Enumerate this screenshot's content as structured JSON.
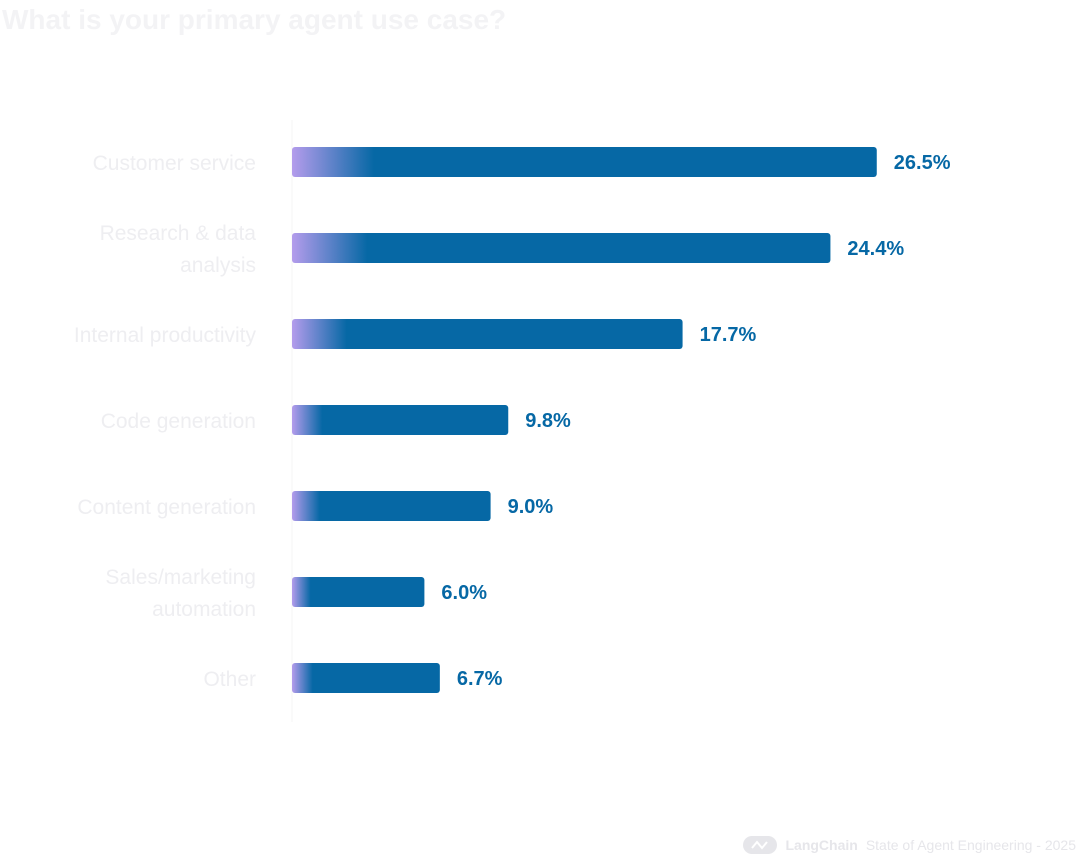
{
  "title": "What is your primary agent use case?",
  "footer": {
    "brand": "LangChain",
    "text": "State of Agent Engineering - 2025",
    "logo_icon": "langchain-logo-icon"
  },
  "colors": {
    "bar": "#0668a5",
    "bar_gradient_start": "#b49cec",
    "value_label": "#0668a5",
    "category_label": "#eeeef1",
    "axis": "#f4f4f6"
  },
  "chart_data": {
    "type": "bar",
    "orientation": "horizontal",
    "title": "What is your primary agent use case?",
    "categories": [
      [
        "Customer service"
      ],
      [
        "Research & data",
        "analysis"
      ],
      [
        "Internal productivity"
      ],
      [
        "Code generation"
      ],
      [
        "Content generation"
      ],
      [
        "Sales/marketing",
        "automation"
      ],
      [
        "Other"
      ]
    ],
    "values": [
      26.5,
      24.4,
      17.7,
      9.8,
      9.0,
      6.0,
      6.7
    ],
    "value_labels": [
      "26.5%",
      "24.4%",
      "17.7%",
      "9.8%",
      "9.0%",
      "6.0%",
      "6.7%"
    ],
    "xlim": [
      0,
      30
    ],
    "grid": false,
    "legend": "none"
  }
}
